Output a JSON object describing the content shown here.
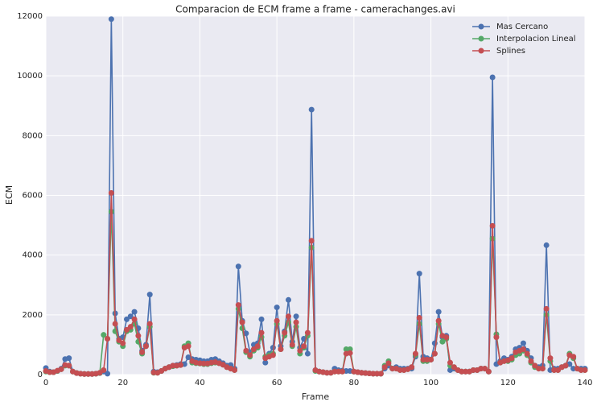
{
  "chart_data": {
    "type": "line",
    "title": "Comparacion de ECM frame a frame - camerachanges.avi",
    "x_label": "Frame",
    "y_label": "ECM",
    "xlim": [
      0,
      140
    ],
    "ylim": [
      0,
      12000
    ],
    "xticks": [
      0,
      20,
      40,
      60,
      80,
      100,
      120,
      140
    ],
    "yticks": [
      0,
      2000,
      4000,
      6000,
      8000,
      10000,
      12000
    ],
    "grid": true,
    "legend": "upper right",
    "x": [
      0,
      1,
      2,
      3,
      4,
      5,
      6,
      7,
      8,
      9,
      10,
      11,
      12,
      13,
      14,
      15,
      16,
      17,
      18,
      19,
      20,
      21,
      22,
      23,
      24,
      25,
      26,
      27,
      28,
      29,
      30,
      31,
      32,
      33,
      34,
      35,
      36,
      37,
      38,
      39,
      40,
      41,
      42,
      43,
      44,
      45,
      46,
      47,
      48,
      49,
      50,
      51,
      52,
      53,
      54,
      55,
      56,
      57,
      58,
      59,
      60,
      61,
      62,
      63,
      64,
      65,
      66,
      67,
      68,
      69,
      70,
      71,
      72,
      73,
      74,
      75,
      76,
      77,
      78,
      79,
      80,
      81,
      82,
      83,
      84,
      85,
      86,
      87,
      88,
      89,
      90,
      91,
      92,
      93,
      94,
      95,
      96,
      97,
      98,
      99,
      100,
      101,
      102,
      103,
      104,
      105,
      106,
      107,
      108,
      109,
      110,
      111,
      112,
      113,
      114,
      115,
      116,
      117,
      118,
      119,
      120,
      121,
      122,
      123,
      124,
      125,
      126,
      127,
      128,
      129,
      130,
      131,
      132,
      133,
      134,
      135,
      136,
      137,
      138,
      139,
      140
    ],
    "series": [
      {
        "name": "Mas Cercano",
        "color": "#4c72b0",
        "values": [
          220,
          100,
          80,
          120,
          200,
          520,
          550,
          100,
          50,
          30,
          20,
          20,
          20,
          30,
          50,
          100,
          30,
          11900,
          2050,
          1200,
          1250,
          1850,
          1950,
          2100,
          1550,
          800,
          1000,
          2680,
          100,
          80,
          120,
          200,
          250,
          300,
          320,
          350,
          350,
          580,
          520,
          500,
          480,
          450,
          450,
          500,
          520,
          450,
          380,
          300,
          320,
          200,
          3620,
          1800,
          1380,
          750,
          1000,
          1050,
          1850,
          400,
          700,
          900,
          2250,
          950,
          1450,
          2500,
          1100,
          1950,
          900,
          1200,
          700,
          8870,
          150,
          100,
          80,
          60,
          60,
          200,
          150,
          130,
          120,
          120,
          100,
          80,
          60,
          50,
          40,
          30,
          30,
          30,
          200,
          300,
          200,
          250,
          200,
          200,
          200,
          200,
          600,
          3380,
          600,
          550,
          500,
          1050,
          2100,
          1250,
          1300,
          150,
          200,
          150,
          100,
          100,
          100,
          150,
          150,
          200,
          200,
          100,
          9950,
          350,
          450,
          550,
          500,
          600,
          850,
          900,
          1050,
          800,
          550,
          300,
          250,
          300,
          4330,
          150,
          200,
          200,
          250,
          300,
          350,
          200,
          200,
          200,
          200
        ]
      },
      {
        "name": "Interpolacion Lineal",
        "color": "#55a868",
        "values": [
          100,
          80,
          80,
          120,
          180,
          300,
          300,
          100,
          50,
          30,
          20,
          20,
          20,
          30,
          50,
          1330,
          1200,
          5450,
          1450,
          1100,
          950,
          1450,
          1500,
          1700,
          1100,
          700,
          950,
          1600,
          60,
          60,
          120,
          200,
          250,
          280,
          300,
          320,
          950,
          1050,
          400,
          380,
          370,
          350,
          350,
          380,
          400,
          380,
          330,
          250,
          200,
          150,
          2200,
          1550,
          750,
          600,
          800,
          900,
          1250,
          600,
          650,
          700,
          1700,
          850,
          1300,
          1750,
          950,
          1600,
          700,
          900,
          1300,
          4250,
          120,
          100,
          80,
          60,
          60,
          100,
          100,
          100,
          850,
          850,
          100,
          80,
          60,
          50,
          40,
          30,
          30,
          30,
          300,
          450,
          200,
          200,
          150,
          150,
          180,
          250,
          650,
          1700,
          450,
          450,
          500,
          700,
          1700,
          1100,
          1200,
          300,
          250,
          150,
          100,
          100,
          100,
          150,
          150,
          200,
          200,
          100,
          4550,
          1350,
          400,
          450,
          450,
          500,
          650,
          700,
          800,
          650,
          400,
          250,
          200,
          200,
          2000,
          450,
          150,
          150,
          250,
          300,
          700,
          550,
          200,
          150,
          150
        ]
      },
      {
        "name": "Splines",
        "color": "#c44e52",
        "values": [
          120,
          80,
          80,
          130,
          180,
          320,
          300,
          100,
          50,
          30,
          20,
          20,
          20,
          30,
          60,
          150,
          1200,
          6080,
          1700,
          1150,
          1050,
          1500,
          1600,
          1850,
          1300,
          750,
          950,
          1700,
          70,
          60,
          120,
          200,
          250,
          300,
          300,
          320,
          900,
          950,
          450,
          400,
          380,
          370,
          370,
          400,
          420,
          380,
          330,
          250,
          200,
          150,
          2330,
          1750,
          800,
          650,
          850,
          950,
          1400,
          550,
          600,
          650,
          1800,
          850,
          1400,
          1950,
          1000,
          1750,
          800,
          950,
          1400,
          4480,
          150,
          100,
          80,
          60,
          60,
          100,
          100,
          100,
          700,
          720,
          100,
          80,
          60,
          50,
          40,
          30,
          30,
          30,
          250,
          380,
          200,
          200,
          150,
          150,
          180,
          250,
          700,
          1900,
          500,
          500,
          500,
          700,
          1800,
          1300,
          1250,
          400,
          250,
          150,
          100,
          100,
          100,
          150,
          150,
          200,
          200,
          100,
          4980,
          1250,
          400,
          450,
          480,
          550,
          750,
          800,
          850,
          700,
          450,
          300,
          200,
          200,
          2200,
          550,
          150,
          150,
          250,
          300,
          650,
          600,
          200,
          150,
          150
        ]
      }
    ]
  }
}
